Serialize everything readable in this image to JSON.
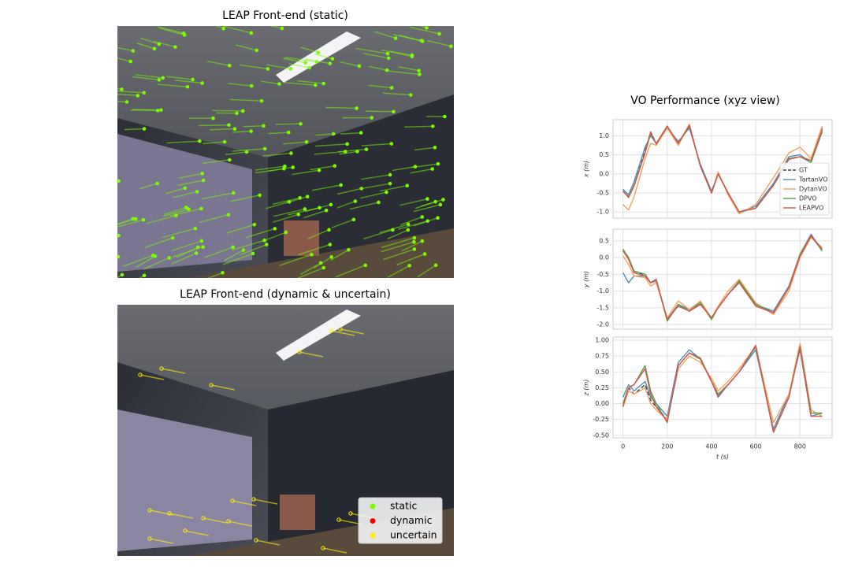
{
  "figure": {
    "image_titles": [
      "LEAP Front-end (static)",
      "LEAP Front-end (dynamic & uncertain)"
    ],
    "image_legend": [
      {
        "label": "static",
        "color": "#7cfc00"
      },
      {
        "label": "dynamic",
        "color": "#ff0000"
      },
      {
        "label": "uncertain",
        "color": "#ffee00"
      }
    ],
    "chart_title": "VO Performance (xyz view)"
  },
  "chart_data": [
    {
      "type": "line",
      "ylabel": "x (m)",
      "legend": "lower right",
      "grid": true,
      "xtick_labels": false,
      "x": [
        0,
        25,
        50,
        100,
        125,
        150,
        200,
        250,
        300,
        350,
        400,
        430,
        475,
        525,
        600,
        680,
        750,
        800,
        850,
        900
      ],
      "xlim": [
        -45,
        945
      ],
      "xticks": [
        0,
        200,
        400,
        600,
        800
      ],
      "ylim": [
        -1.16,
        1.42
      ],
      "yticks": [
        {
          "value": -1,
          "label": "-1.0"
        },
        -0.5,
        {
          "value": 0,
          "label": "0.0"
        },
        0.5,
        {
          "value": 1,
          "label": "1.0"
        }
      ],
      "series": [
        {
          "name": "GT",
          "color": "#444444",
          "dashed": true,
          "values": [
            -0.45,
            -0.6,
            -0.3,
            0.6,
            1.1,
            0.8,
            1.25,
            0.8,
            1.25,
            0.2,
            -0.5,
            0.0,
            -0.5,
            -1.0,
            -0.9,
            -0.3,
            0.4,
            0.45,
            0.35,
            1.2
          ]
        },
        {
          "name": "TartanVO",
          "color": "#4c8fbd",
          "values": [
            -0.4,
            -0.55,
            -0.2,
            0.7,
            1.0,
            0.8,
            1.2,
            0.85,
            1.2,
            0.25,
            -0.45,
            0.0,
            -0.5,
            -1.0,
            -0.85,
            -0.25,
            0.45,
            0.5,
            0.3,
            1.15
          ]
        },
        {
          "name": "DytanVO",
          "color": "#f5a05a",
          "values": [
            -0.8,
            -0.95,
            -0.6,
            0.4,
            0.8,
            0.75,
            1.2,
            0.75,
            1.3,
            0.2,
            -0.5,
            0.05,
            -0.55,
            -1.05,
            -0.8,
            -0.1,
            0.55,
            0.7,
            0.4,
            1.25
          ]
        },
        {
          "name": "DPVO",
          "color": "#4aa84a",
          "values": [
            -0.45,
            -0.6,
            -0.3,
            0.55,
            1.05,
            0.8,
            1.25,
            0.8,
            1.25,
            0.2,
            -0.5,
            0.0,
            -0.5,
            -1.0,
            -0.9,
            -0.3,
            0.4,
            0.45,
            0.3,
            1.1
          ]
        },
        {
          "name": "LEAPVO",
          "color": "#d9534f",
          "values": [
            -0.45,
            -0.62,
            -0.32,
            0.55,
            1.1,
            0.78,
            1.25,
            0.8,
            1.28,
            0.2,
            -0.5,
            0.0,
            -0.5,
            -1.0,
            -0.9,
            -0.3,
            0.38,
            0.45,
            0.35,
            1.15
          ]
        }
      ]
    },
    {
      "type": "line",
      "ylabel": "y (m)",
      "grid": true,
      "xtick_labels": false,
      "x": [
        0,
        25,
        50,
        100,
        125,
        150,
        200,
        250,
        300,
        350,
        400,
        430,
        475,
        525,
        600,
        680,
        750,
        800,
        850,
        900
      ],
      "xlim": [
        -45,
        945
      ],
      "xticks": [
        0,
        200,
        400,
        600,
        800
      ],
      "ylim": [
        -2.14,
        0.85
      ],
      "yticks": [
        0.5,
        {
          "value": 0,
          "label": "0.0"
        },
        -0.5,
        {
          "value": -1,
          "label": "-1.0"
        },
        -1.5,
        {
          "value": -2,
          "label": "-2.0"
        }
      ],
      "series": [
        {
          "name": "GT",
          "color": "#444444",
          "dashed": true,
          "values": [
            0.25,
            0.0,
            -0.45,
            -0.5,
            -0.75,
            -0.65,
            -1.85,
            -1.4,
            -1.6,
            -1.35,
            -1.8,
            -1.5,
            -1.1,
            -0.7,
            -1.4,
            -1.65,
            -0.9,
            0.1,
            0.65,
            0.25
          ]
        },
        {
          "name": "TartanVO",
          "color": "#4c8fbd",
          "values": [
            -0.45,
            -0.75,
            -0.55,
            -0.55,
            -0.75,
            -0.7,
            -1.85,
            -1.4,
            -1.55,
            -1.35,
            -1.8,
            -1.5,
            -1.1,
            -0.7,
            -1.4,
            -1.6,
            -0.85,
            0.1,
            0.7,
            0.2
          ]
        },
        {
          "name": "DytanVO",
          "color": "#f5a05a",
          "values": [
            0.05,
            -0.2,
            -0.55,
            -0.6,
            -0.85,
            -0.75,
            -1.8,
            -1.3,
            -1.55,
            -1.3,
            -1.8,
            -1.45,
            -1.0,
            -0.65,
            -1.35,
            -1.7,
            -1.0,
            0.0,
            0.6,
            0.3
          ]
        },
        {
          "name": "DPVO",
          "color": "#4aa84a",
          "values": [
            0.25,
            0.0,
            -0.4,
            -0.5,
            -0.75,
            -0.65,
            -1.9,
            -1.4,
            -1.6,
            -1.35,
            -1.85,
            -1.5,
            -1.1,
            -0.7,
            -1.4,
            -1.65,
            -0.9,
            0.1,
            0.65,
            0.2
          ]
        },
        {
          "name": "LEAPVO",
          "color": "#d9534f",
          "values": [
            0.2,
            -0.05,
            -0.45,
            -0.55,
            -0.75,
            -0.65,
            -1.85,
            -1.45,
            -1.6,
            -1.4,
            -1.8,
            -1.5,
            -1.1,
            -0.75,
            -1.45,
            -1.65,
            -0.9,
            0.05,
            0.65,
            0.25
          ]
        }
      ]
    },
    {
      "type": "line",
      "ylabel": "z (m)",
      "xlabel": "t (s)",
      "grid": true,
      "xtick_labels": true,
      "x": [
        0,
        25,
        50,
        100,
        125,
        150,
        200,
        250,
        300,
        350,
        400,
        430,
        475,
        525,
        600,
        680,
        750,
        800,
        850,
        900
      ],
      "xlim": [
        -45,
        945
      ],
      "xticks": [
        0,
        200,
        400,
        600,
        800
      ],
      "ylim": [
        -0.54,
        1.05
      ],
      "yticks": [
        {
          "value": 1,
          "label": "1.00"
        },
        0.75,
        {
          "value": 0.5,
          "label": "0.50"
        },
        0.25,
        {
          "value": 0,
          "label": "0.00"
        },
        -0.25,
        {
          "value": -0.5,
          "label": "-0.50"
        }
      ],
      "series": [
        {
          "name": "GT",
          "color": "#444444",
          "dashed": true,
          "values": [
            -0.05,
            0.25,
            0.15,
            0.3,
            0.05,
            -0.05,
            -0.25,
            0.6,
            0.8,
            0.7,
            0.35,
            0.15,
            0.3,
            0.5,
            0.9,
            -0.45,
            0.1,
            0.9,
            -0.15,
            -0.15
          ]
        },
        {
          "name": "TartanVO",
          "color": "#4c8fbd",
          "values": [
            0.1,
            0.3,
            0.2,
            0.35,
            0.1,
            0.0,
            -0.2,
            0.65,
            0.85,
            0.7,
            0.35,
            0.1,
            0.3,
            0.5,
            0.85,
            -0.4,
            0.15,
            0.85,
            -0.2,
            -0.15
          ]
        },
        {
          "name": "DytanVO",
          "color": "#f5a05a",
          "values": [
            -0.05,
            0.2,
            0.15,
            0.25,
            0.0,
            -0.1,
            -0.25,
            0.55,
            0.75,
            0.65,
            0.4,
            0.2,
            0.35,
            0.55,
            0.9,
            -0.3,
            0.15,
            0.95,
            -0.1,
            -0.2
          ]
        },
        {
          "name": "DPVO",
          "color": "#4aa84a",
          "values": [
            0.0,
            0.25,
            0.3,
            0.6,
            0.2,
            0.0,
            -0.3,
            0.6,
            0.8,
            0.7,
            0.35,
            0.15,
            0.3,
            0.5,
            0.9,
            -0.45,
            0.1,
            0.9,
            -0.15,
            -0.15
          ]
        },
        {
          "name": "LEAPVO",
          "color": "#d9534f",
          "values": [
            -0.05,
            0.25,
            0.3,
            0.55,
            0.15,
            -0.05,
            -0.28,
            0.6,
            0.8,
            0.72,
            0.35,
            0.12,
            0.3,
            0.5,
            0.92,
            -0.45,
            0.1,
            0.9,
            -0.2,
            -0.2
          ]
        }
      ]
    }
  ]
}
